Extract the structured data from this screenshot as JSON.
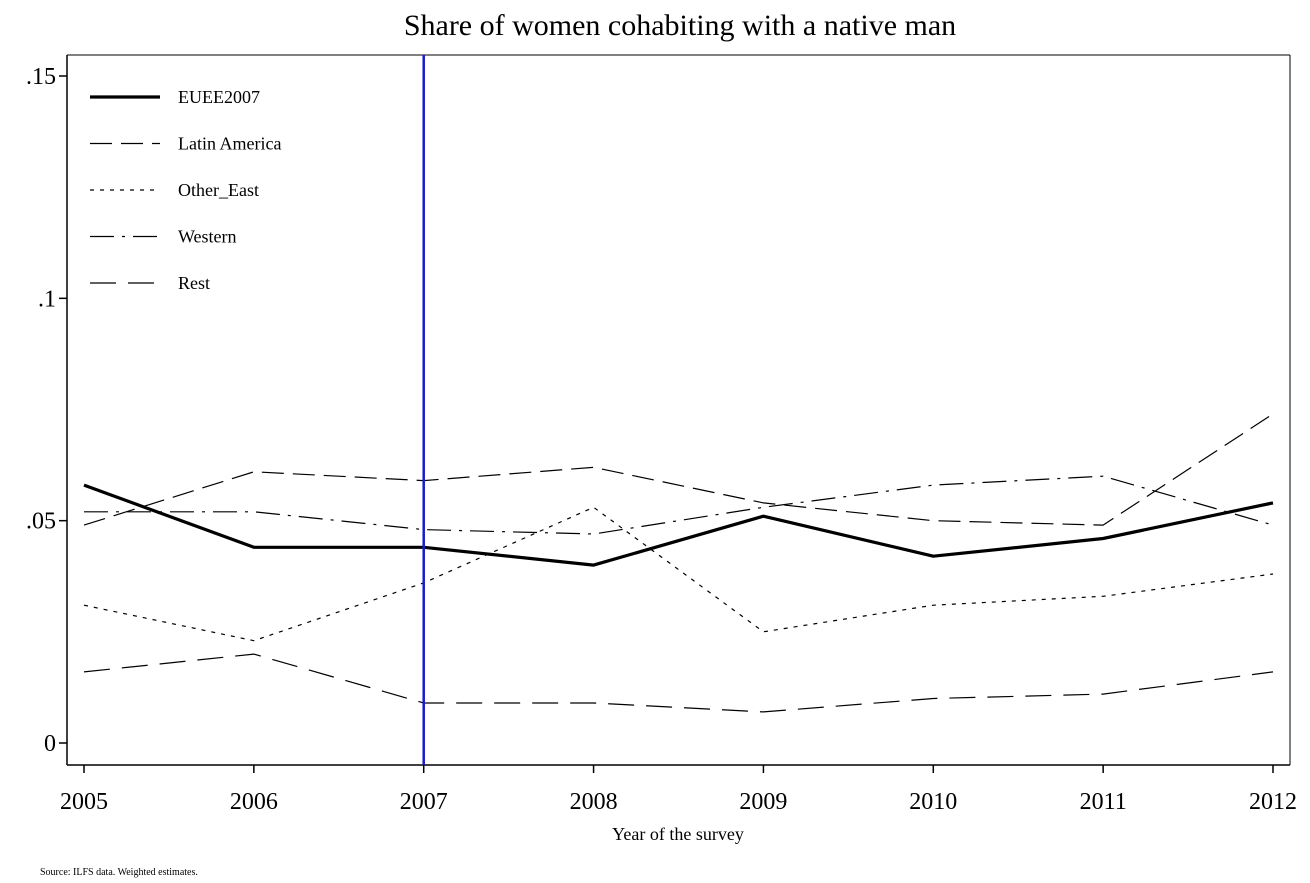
{
  "chart_data": {
    "type": "line",
    "title": "Share of women cohabiting with a native man",
    "xlabel": "Year of the survey",
    "ylabel": "",
    "note": "Source: ILFS data. Weighted estimates.",
    "x": [
      2005,
      2006,
      2007,
      2008,
      2009,
      2010,
      2011,
      2012
    ],
    "x_tick_labels": [
      "2005",
      "2006",
      "2007",
      "2008",
      "2009",
      "2010",
      "2011",
      "2012"
    ],
    "xlim": [
      2005,
      2012
    ],
    "ylim": [
      -0.005,
      0.152
    ],
    "y_ticks": [
      0,
      0.05,
      0.1,
      0.15
    ],
    "y_tick_labels": [
      "0",
      ".05",
      ".1",
      ".15"
    ],
    "grid": false,
    "legend_position": "top-left",
    "reference_line": {
      "x": 2007,
      "color": "#1a1acc"
    },
    "series": [
      {
        "name": "EUEE2007",
        "style": "solid-thick",
        "values": [
          0.058,
          0.044,
          0.044,
          0.04,
          0.051,
          0.042,
          0.046,
          0.054
        ]
      },
      {
        "name": "Latin America",
        "style": "longdash",
        "values": [
          0.049,
          0.061,
          0.059,
          0.062,
          0.054,
          0.05,
          0.049,
          0.074
        ]
      },
      {
        "name": "Other_East",
        "style": "shortdash",
        "values": [
          0.031,
          0.023,
          0.036,
          0.053,
          0.025,
          0.031,
          0.033,
          0.038
        ]
      },
      {
        "name": "Western",
        "style": "dashdot",
        "values": [
          0.052,
          0.052,
          0.048,
          0.047,
          0.053,
          0.058,
          0.06,
          0.049
        ]
      },
      {
        "name": "Rest",
        "style": "longdash-wide",
        "values": [
          0.016,
          0.02,
          0.009,
          0.009,
          0.007,
          0.01,
          0.011,
          0.016
        ]
      }
    ]
  }
}
